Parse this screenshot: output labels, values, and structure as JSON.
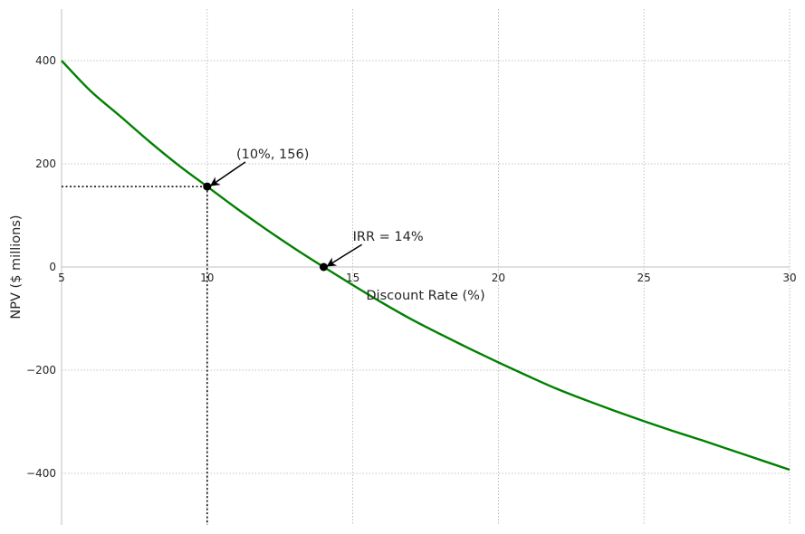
{
  "chart_data": {
    "type": "line",
    "title": "",
    "xlabel": "Discount Rate (%)",
    "ylabel": "NPV ($ millions)",
    "xlim": [
      5,
      30
    ],
    "ylim": [
      -500,
      500
    ],
    "x_ticks": [
      5,
      10,
      15,
      20,
      25,
      30
    ],
    "y_ticks": [
      -400,
      -200,
      0,
      200,
      400
    ],
    "grid": true,
    "legend": "none",
    "line_color": "#008000",
    "series": [
      {
        "x": [
          5,
          6,
          7,
          8,
          9,
          10,
          11,
          12,
          13,
          14,
          15,
          16,
          17,
          18,
          19,
          20,
          21,
          22,
          23,
          24,
          25,
          26,
          27,
          28,
          29,
          30
        ],
        "values": [
          400,
          341,
          293,
          244,
          198,
          156,
          114,
          74,
          36,
          0,
          -35,
          -69,
          -101,
          -130,
          -158,
          -185,
          -211,
          -236,
          -258,
          -279,
          -299,
          -318,
          -336,
          -355,
          -374,
          -393
        ]
      }
    ],
    "highlight_points": [
      {
        "x": 10,
        "y": 156,
        "label": "(10%, 156)",
        "label_at": [
          11,
          200
        ],
        "guides": true
      },
      {
        "x": 14,
        "y": 0,
        "label": "IRR = 14%",
        "label_at": [
          15,
          40
        ],
        "guides": false
      }
    ]
  }
}
